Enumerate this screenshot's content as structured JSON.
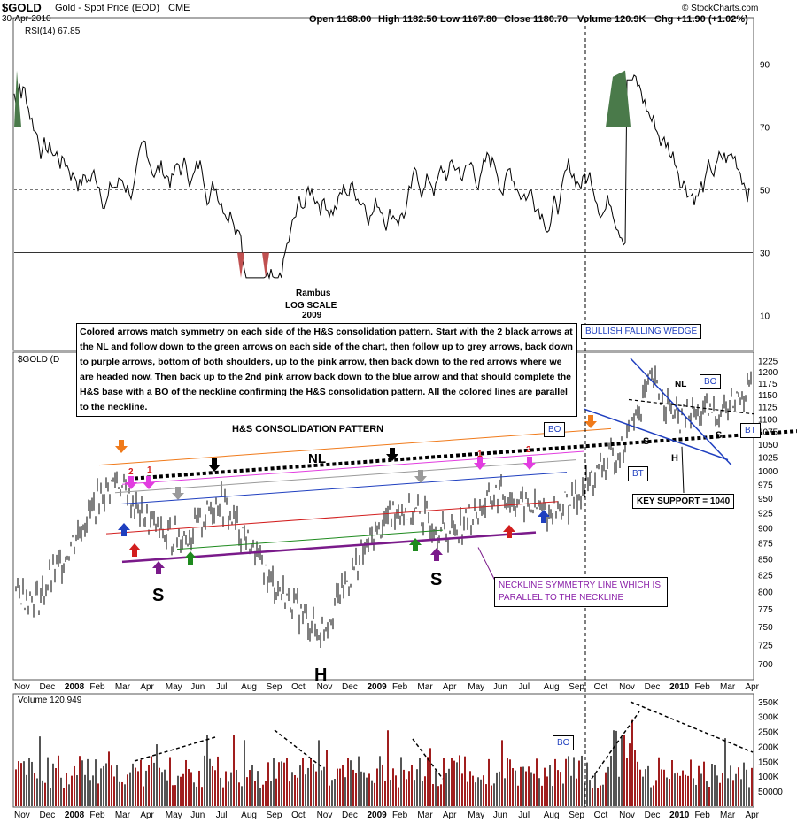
{
  "header": {
    "symbol": "$GOLD",
    "name": "Gold - Spot Price (EOD)",
    "exchange": "CME",
    "date": "30-Apr-2010",
    "open": "Open 1168.00",
    "high": "High 1182.50",
    "low": "Low 1167.80",
    "close": "Close 1180.70",
    "volume": "Volume 120.9K",
    "change": "Chg +11.90 (+1.02%)",
    "copyright": "© StockCharts.com"
  },
  "colors": {
    "price": "#000000",
    "orange_line": "#f07a1a",
    "magenta_line": "#e23ce0",
    "grey_line": "#9a9a9a",
    "blue_line": "#1f3fbf",
    "red_line": "#d21e1e",
    "green_line": "#1e8a1e",
    "purple_line": "#7a1a8a",
    "rsi_fill": "#4a7a4a",
    "volume_bar": "#a01e1e"
  },
  "chart_data": [
    {
      "type": "line",
      "title": "RSI(14) 67.85",
      "series_name": "RSI(14)",
      "last_value": 67.85,
      "ylim": [
        0,
        100
      ],
      "y_ticks": [
        10,
        30,
        50,
        70,
        90
      ],
      "reference_lines": [
        30,
        50,
        70
      ]
    },
    {
      "type": "candlestick",
      "title": "$GOLD (Daily)",
      "scale": "log",
      "y_ticks": [
        700,
        725,
        750,
        775,
        800,
        825,
        850,
        875,
        900,
        925,
        950,
        975,
        1000,
        1025,
        1050,
        1075,
        1100,
        1125,
        1150,
        1175,
        1200,
        1225
      ],
      "x_tick_labels": [
        "Nov",
        "Dec",
        "2008",
        "Feb",
        "Mar",
        "Apr",
        "May",
        "Jun",
        "Jul",
        "Aug",
        "Sep",
        "Oct",
        "Nov",
        "Dec",
        "2009",
        "Feb",
        "Mar",
        "Apr",
        "May",
        "Jun",
        "Jul",
        "Aug",
        "Sep",
        "Oct",
        "Nov",
        "Dec",
        "2010",
        "Feb",
        "Mar",
        "Apr"
      ],
      "approx_closes": [
        [
          0,
          800
        ],
        [
          1,
          790
        ],
        [
          2,
          855
        ],
        [
          3,
          930
        ],
        [
          4,
          985
        ],
        [
          5,
          920
        ],
        [
          6,
          885
        ],
        [
          7,
          890
        ],
        [
          8,
          950
        ],
        [
          9,
          890
        ],
        [
          10,
          820
        ],
        [
          11,
          780
        ],
        [
          12,
          740
        ],
        [
          13,
          810
        ],
        [
          14,
          880
        ],
        [
          15,
          935
        ],
        [
          16,
          920
        ],
        [
          17,
          890
        ],
        [
          18,
          920
        ],
        [
          19,
          960
        ],
        [
          20,
          940
        ],
        [
          21,
          925
        ],
        [
          22,
          950
        ],
        [
          23,
          1000
        ],
        [
          24,
          1050
        ],
        [
          25,
          1180
        ],
        [
          26,
          1100
        ],
        [
          27,
          1110
        ],
        [
          28,
          1120
        ],
        [
          29,
          1180
        ]
      ]
    },
    {
      "type": "bar",
      "title": "Volume 120,949",
      "series_name": "Volume",
      "last_value": 120949,
      "y_tick_labels": [
        "50000",
        "100K",
        "150K",
        "200K",
        "250K",
        "300K",
        "350K"
      ],
      "y_ticks": [
        50000,
        100000,
        150000,
        200000,
        250000,
        300000,
        350000
      ]
    }
  ],
  "annotations": {
    "rambus": "Rambus",
    "log_scale": "LOG SCALE",
    "year": "2009",
    "note": "Colored arrows match symmetry on each side of the H&S consolidation pattern. Start with the 2 black arrows at the NL and follow down to the green arrows on each side of the chart, then follow up to grey arrows, back down to purple arrows, bottom of both shoulders, up to the pink arrow, then back down to the red arrows where we are headed now. Then back up to the 2nd pink arrow back down to the blue arrow and that should complete the H&S base with a BO of the neckline confirming the H&S consolidation pattern. All the colored lines are parallel to the neckline.",
    "pattern_title": "H&S CONSOLIDATION PATTERN",
    "nl": "NL",
    "nl_small": "NL",
    "shoulder_left": "S",
    "shoulder_right": "S",
    "head": "H",
    "wedge_s1": "S",
    "wedge_s2": "S",
    "wedge_h": "H",
    "wedge": "BULLISH FALLING WEDGE",
    "bo1": "BO",
    "bo2": "BO",
    "bo3": "BO",
    "bt1": "BT",
    "bt2": "BT",
    "key_support": "KEY SUPPORT = 1040",
    "neckline_symmetry": "NECKLINE SYMMETRY LINE WHICH IS PARALLEL TO THE NECKLINE",
    "arrow_num_2a": "2",
    "arrow_num_1a": "1",
    "arrow_num_1b": "1",
    "arrow_num_2b": "2",
    "price_label": "$GOLD (D"
  }
}
